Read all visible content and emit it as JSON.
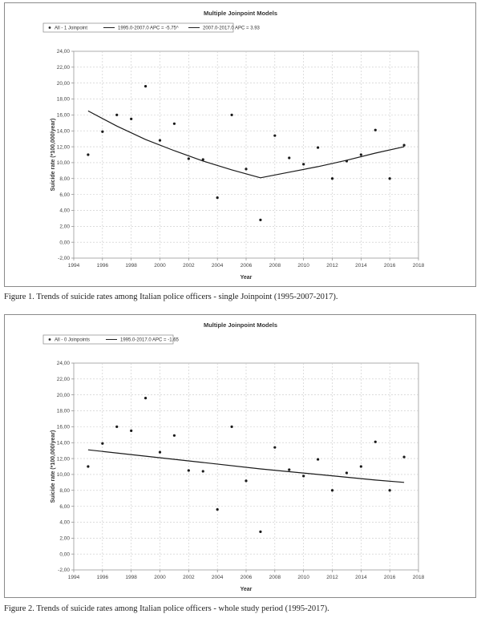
{
  "figures": [
    {
      "caption": "Figure 1. Trends of suicide rates among Italian police officers - single Joinpoint (1995-2007-2017).",
      "chart_data": {
        "type": "scatter",
        "title": "Multiple Joinpoint Models",
        "xlabel": "Year",
        "ylabel": "Suicide rate (*100,000/year)",
        "xlim": [
          1994,
          2018
        ],
        "ylim": [
          -2,
          24
        ],
        "x_ticks": [
          "1994",
          "1996",
          "1998",
          "2000",
          "2002",
          "2004",
          "2006",
          "2008",
          "2010",
          "2012",
          "2014",
          "2016",
          "2018"
        ],
        "y_ticks": [
          "-2,00",
          "0,00",
          "2,00",
          "4,00",
          "6,00",
          "8,00",
          "10,00",
          "12,00",
          "14,00",
          "16,00",
          "18,00",
          "20,00",
          "22,00",
          "24,00"
        ],
        "grid": true,
        "legend_position": "top-left",
        "legend": [
          {
            "label": "All - 1 Joinpoint",
            "kind": "marker"
          },
          {
            "label": "1995.0-2007.0 APC = -5.75^",
            "kind": "line"
          },
          {
            "label": "2007.0-2017.0 APC = 3.93",
            "kind": "line"
          }
        ],
        "series": [
          {
            "kind": "points",
            "x": [
              1995,
              1996,
              1997,
              1998,
              1999,
              2000,
              2001,
              2002,
              2003,
              2004,
              2005,
              2006,
              2007,
              2008,
              2009,
              2010,
              2011,
              2012,
              2013,
              2014,
              2015,
              2016,
              2017
            ],
            "y": [
              11.0,
              13.9,
              16.0,
              15.5,
              19.6,
              12.8,
              14.9,
              10.5,
              10.4,
              5.6,
              16.0,
              9.2,
              2.8,
              13.4,
              10.6,
              9.8,
              11.9,
              8.0,
              10.2,
              11.0,
              14.1,
              8.0,
              12.2
            ]
          },
          {
            "kind": "trend",
            "x": [
              1995,
              1997,
              1999,
              2001,
              2003,
              2005,
              2007
            ],
            "y": [
              16.5,
              14.6,
              12.9,
              11.5,
              10.2,
              9.1,
              8.1
            ]
          },
          {
            "kind": "trend",
            "x": [
              2007,
              2009,
              2011,
              2013,
              2015,
              2017
            ],
            "y": [
              8.1,
              8.8,
              9.5,
              10.3,
              11.2,
              12.0
            ]
          }
        ]
      }
    },
    {
      "caption": "Figure 2. Trends of suicide rates among Italian police officers - whole study period (1995-2017).",
      "chart_data": {
        "type": "scatter",
        "title": "Multiple Joinpoint Models",
        "xlabel": "Year",
        "ylabel": "Suicide rate (*100,000/year)",
        "xlim": [
          1994,
          2018
        ],
        "ylim": [
          -2,
          24
        ],
        "x_ticks": [
          "1994",
          "1996",
          "1998",
          "2000",
          "2002",
          "2004",
          "2006",
          "2008",
          "2010",
          "2012",
          "2014",
          "2016",
          "2018"
        ],
        "y_ticks": [
          "-2,00",
          "0,00",
          "2,00",
          "4,00",
          "6,00",
          "8,00",
          "10,00",
          "12,00",
          "14,00",
          "16,00",
          "18,00",
          "20,00",
          "22,00",
          "24,00"
        ],
        "grid": true,
        "legend_position": "top-left",
        "legend": [
          {
            "label": "All - 0 Joinpoints",
            "kind": "marker"
          },
          {
            "label": "1995.0-2017.0 APC = -1.65",
            "kind": "line"
          }
        ],
        "series": [
          {
            "kind": "points",
            "x": [
              1995,
              1996,
              1997,
              1998,
              1999,
              2000,
              2001,
              2002,
              2003,
              2004,
              2005,
              2006,
              2007,
              2008,
              2009,
              2010,
              2011,
              2012,
              2013,
              2014,
              2015,
              2016,
              2017
            ],
            "y": [
              11.0,
              13.9,
              16.0,
              15.5,
              19.6,
              12.8,
              14.9,
              10.5,
              10.4,
              5.6,
              16.0,
              9.2,
              2.8,
              13.4,
              10.6,
              9.8,
              11.9,
              8.0,
              10.2,
              11.0,
              14.1,
              8.0,
              12.2
            ]
          },
          {
            "kind": "trend",
            "x": [
              1995,
              1999,
              2003,
              2007,
              2011,
              2015,
              2017
            ],
            "y": [
              13.1,
              12.3,
              11.5,
              10.7,
              10.0,
              9.3,
              9.0
            ]
          }
        ]
      }
    }
  ]
}
